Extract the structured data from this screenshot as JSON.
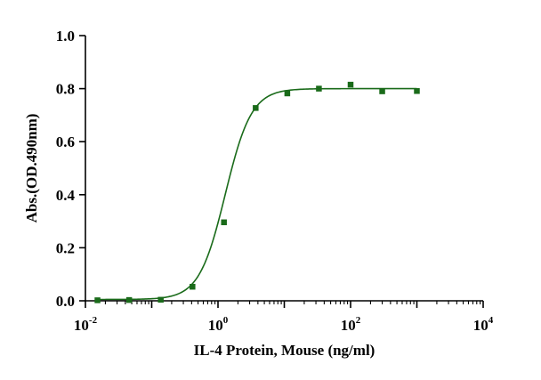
{
  "chart_data": {
    "type": "scatter",
    "title": "",
    "xlabel": "IL-4 Protein, Mouse  (ng/ml)",
    "ylabel": "Abs.(OD.490nm)",
    "x_scale": "log10",
    "xlim": [
      0.01,
      10000
    ],
    "ylim": [
      0,
      1.0
    ],
    "x_ticks": [
      {
        "value": 0.01,
        "base": "10",
        "exp": "-2"
      },
      {
        "value": 1,
        "base": "10",
        "exp": "0"
      },
      {
        "value": 100,
        "base": "10",
        "exp": "2"
      },
      {
        "value": 10000,
        "base": "10",
        "exp": "4"
      }
    ],
    "y_ticks": [
      "0.0",
      "0.2",
      "0.4",
      "0.6",
      "0.8",
      "1.0"
    ],
    "grid": false,
    "legend": "none",
    "colors": {
      "series": "#1a6b1a",
      "axis": "#000000"
    },
    "series": [
      {
        "x": [
          0.0152,
          0.0457,
          0.137,
          0.412,
          1.23,
          3.7,
          11.1,
          33.3,
          100,
          300,
          1000
        ],
        "y": [
          0.002,
          0.003,
          0.004,
          0.053,
          0.296,
          0.727,
          0.782,
          0.8,
          0.815,
          0.79,
          0.791
        ]
      }
    ],
    "fit_curve": {
      "type": "4PL",
      "bottom": 0.005,
      "top": 0.8,
      "ec50": 1.29,
      "hill": 2.2
    }
  }
}
